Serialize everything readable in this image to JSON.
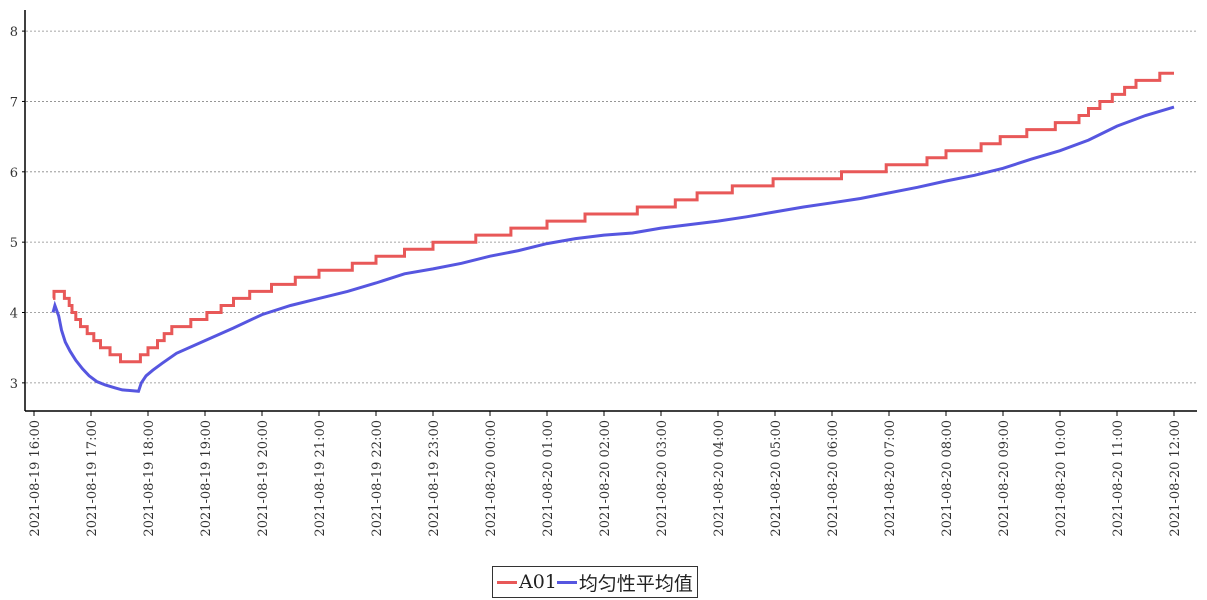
{
  "chart_data": {
    "type": "line",
    "title": "",
    "xlabel": "",
    "ylabel": "",
    "ylim": [
      2.6,
      8.3
    ],
    "yticks": [
      3,
      4,
      5,
      6,
      7,
      8
    ],
    "grid": "horizontal dotted",
    "legend_position": "bottom-center",
    "x_ticks": [
      "2021-08-19 16:00",
      "2021-08-19 17:00",
      "2021-08-19 18:00",
      "2021-08-19 19:00",
      "2021-08-19 20:00",
      "2021-08-19 21:00",
      "2021-08-19 22:00",
      "2021-08-19 23:00",
      "2021-08-20 00:00",
      "2021-08-20 01:00",
      "2021-08-20 02:00",
      "2021-08-20 03:00",
      "2021-08-20 04:00",
      "2021-08-20 05:00",
      "2021-08-20 06:00",
      "2021-08-20 07:00",
      "2021-08-20 08:00",
      "2021-08-20 09:00",
      "2021-08-20 10:00",
      "2021-08-20 11:00",
      "2021-08-20 12:00"
    ],
    "x_start": "2021-08-19 16:00",
    "x_end": "2021-08-20 12:00",
    "series": [
      {
        "name": "A01",
        "color": "#e85858",
        "step": true,
        "points": [
          [
            "2021-08-19 16:20",
            4.2
          ],
          [
            "2021-08-19 16:21",
            4.3
          ],
          [
            "2021-08-19 16:32",
            4.2
          ],
          [
            "2021-08-19 16:37",
            4.1
          ],
          [
            "2021-08-19 16:40",
            4.0
          ],
          [
            "2021-08-19 16:44",
            3.9
          ],
          [
            "2021-08-19 16:49",
            3.8
          ],
          [
            "2021-08-19 16:56",
            3.7
          ],
          [
            "2021-08-19 17:03",
            3.6
          ],
          [
            "2021-08-19 17:10",
            3.5
          ],
          [
            "2021-08-19 17:20",
            3.4
          ],
          [
            "2021-08-19 17:31",
            3.3
          ],
          [
            "2021-08-19 17:52",
            3.4
          ],
          [
            "2021-08-19 18:00",
            3.5
          ],
          [
            "2021-08-19 18:10",
            3.6
          ],
          [
            "2021-08-19 18:17",
            3.7
          ],
          [
            "2021-08-19 18:25",
            3.8
          ],
          [
            "2021-08-19 18:45",
            3.9
          ],
          [
            "2021-08-19 19:02",
            4.0
          ],
          [
            "2021-08-19 19:17",
            4.1
          ],
          [
            "2021-08-19 19:30",
            4.2
          ],
          [
            "2021-08-19 19:47",
            4.3
          ],
          [
            "2021-08-19 20:10",
            4.4
          ],
          [
            "2021-08-19 20:35",
            4.5
          ],
          [
            "2021-08-19 21:00",
            4.6
          ],
          [
            "2021-08-19 21:35",
            4.7
          ],
          [
            "2021-08-19 22:00",
            4.8
          ],
          [
            "2021-08-19 22:30",
            4.9
          ],
          [
            "2021-08-19 23:00",
            5.0
          ],
          [
            "2021-08-19 23:45",
            5.1
          ],
          [
            "2021-08-20 00:22",
            5.2
          ],
          [
            "2021-08-20 01:00",
            5.3
          ],
          [
            "2021-08-20 01:40",
            5.4
          ],
          [
            "2021-08-20 02:35",
            5.5
          ],
          [
            "2021-08-20 03:15",
            5.6
          ],
          [
            "2021-08-20 03:38",
            5.7
          ],
          [
            "2021-08-20 04:15",
            5.8
          ],
          [
            "2021-08-20 04:58",
            5.9
          ],
          [
            "2021-08-20 06:10",
            6.0
          ],
          [
            "2021-08-20 06:57",
            6.1
          ],
          [
            "2021-08-20 07:40",
            6.2
          ],
          [
            "2021-08-20 08:00",
            6.3
          ],
          [
            "2021-08-20 08:37",
            6.4
          ],
          [
            "2021-08-20 08:57",
            6.5
          ],
          [
            "2021-08-20 09:25",
            6.6
          ],
          [
            "2021-08-20 09:55",
            6.7
          ],
          [
            "2021-08-20 10:20",
            6.8
          ],
          [
            "2021-08-20 10:30",
            6.9
          ],
          [
            "2021-08-20 10:42",
            7.0
          ],
          [
            "2021-08-20 10:55",
            7.1
          ],
          [
            "2021-08-20 11:08",
            7.2
          ],
          [
            "2021-08-20 11:20",
            7.3
          ],
          [
            "2021-08-20 11:45",
            7.4
          ],
          [
            "2021-08-20 12:00",
            7.4
          ]
        ]
      },
      {
        "name": "均匀性平均值",
        "color": "#5656e0",
        "step": false,
        "points": [
          [
            "2021-08-19 16:20",
            4.0
          ],
          [
            "2021-08-19 16:22",
            4.1
          ],
          [
            "2021-08-19 16:26",
            3.95
          ],
          [
            "2021-08-19 16:29",
            3.75
          ],
          [
            "2021-08-19 16:33",
            3.58
          ],
          [
            "2021-08-19 16:38",
            3.45
          ],
          [
            "2021-08-19 16:44",
            3.32
          ],
          [
            "2021-08-19 16:51",
            3.2
          ],
          [
            "2021-08-19 16:58",
            3.1
          ],
          [
            "2021-08-19 17:06",
            3.02
          ],
          [
            "2021-08-19 17:15",
            2.97
          ],
          [
            "2021-08-19 17:25",
            2.93
          ],
          [
            "2021-08-19 17:33",
            2.9
          ],
          [
            "2021-08-19 17:50",
            2.88
          ],
          [
            "2021-08-19 17:53",
            3.0
          ],
          [
            "2021-08-19 17:58",
            3.1
          ],
          [
            "2021-08-19 18:05",
            3.18
          ],
          [
            "2021-08-19 18:15",
            3.28
          ],
          [
            "2021-08-19 18:30",
            3.42
          ],
          [
            "2021-08-19 19:00",
            3.6
          ],
          [
            "2021-08-19 19:30",
            3.78
          ],
          [
            "2021-08-19 20:00",
            3.97
          ],
          [
            "2021-08-19 20:30",
            4.1
          ],
          [
            "2021-08-19 21:00",
            4.2
          ],
          [
            "2021-08-19 21:30",
            4.3
          ],
          [
            "2021-08-19 22:00",
            4.42
          ],
          [
            "2021-08-19 22:30",
            4.55
          ],
          [
            "2021-08-19 23:00",
            4.62
          ],
          [
            "2021-08-19 23:30",
            4.7
          ],
          [
            "2021-08-20 00:00",
            4.8
          ],
          [
            "2021-08-20 00:30",
            4.88
          ],
          [
            "2021-08-20 01:00",
            4.98
          ],
          [
            "2021-08-20 01:30",
            5.05
          ],
          [
            "2021-08-20 02:00",
            5.1
          ],
          [
            "2021-08-20 02:30",
            5.13
          ],
          [
            "2021-08-20 03:00",
            5.2
          ],
          [
            "2021-08-20 03:30",
            5.25
          ],
          [
            "2021-08-20 04:00",
            5.3
          ],
          [
            "2021-08-20 04:30",
            5.36
          ],
          [
            "2021-08-20 05:00",
            5.43
          ],
          [
            "2021-08-20 05:30",
            5.5
          ],
          [
            "2021-08-20 06:00",
            5.56
          ],
          [
            "2021-08-20 06:30",
            5.62
          ],
          [
            "2021-08-20 07:00",
            5.7
          ],
          [
            "2021-08-20 07:30",
            5.78
          ],
          [
            "2021-08-20 08:00",
            5.87
          ],
          [
            "2021-08-20 08:30",
            5.95
          ],
          [
            "2021-08-20 09:00",
            6.05
          ],
          [
            "2021-08-20 09:30",
            6.18
          ],
          [
            "2021-08-20 10:00",
            6.3
          ],
          [
            "2021-08-20 10:30",
            6.45
          ],
          [
            "2021-08-20 11:00",
            6.65
          ],
          [
            "2021-08-20 11:30",
            6.8
          ],
          [
            "2021-08-20 12:00",
            6.92
          ]
        ]
      }
    ]
  }
}
